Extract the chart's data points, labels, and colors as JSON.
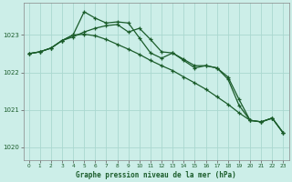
{
  "background_color": "#cceee8",
  "grid_color": "#aad8d0",
  "line_color": "#1a5c2a",
  "text_color": "#1a5c2a",
  "xlabel": "Graphe pression niveau de la mer (hPa)",
  "xlim": [
    -0.5,
    23.5
  ],
  "ylim": [
    1019.65,
    1023.85
  ],
  "yticks": [
    1020,
    1021,
    1022,
    1023
  ],
  "xticks": [
    0,
    1,
    2,
    3,
    4,
    5,
    6,
    7,
    8,
    9,
    10,
    11,
    12,
    13,
    14,
    15,
    16,
    17,
    18,
    19,
    20,
    21,
    22,
    23
  ],
  "series1": [
    1022.5,
    1022.55,
    1022.65,
    1022.85,
    1023.0,
    1023.62,
    1023.45,
    1023.32,
    1023.35,
    1023.32,
    1022.92,
    1022.52,
    1022.38,
    1022.52,
    1022.32,
    1022.12,
    1022.18,
    1022.12,
    1021.82,
    1021.12,
    1020.72,
    1020.68,
    1020.78,
    1020.38
  ],
  "series2": [
    1022.5,
    1022.55,
    1022.65,
    1022.85,
    1022.95,
    1023.08,
    1023.18,
    1023.25,
    1023.28,
    1023.08,
    1023.18,
    1022.88,
    1022.55,
    1022.52,
    1022.35,
    1022.18,
    1022.18,
    1022.12,
    1021.88,
    1021.28,
    1020.72,
    1020.68,
    1020.78,
    1020.38
  ],
  "series3": [
    1022.5,
    1022.55,
    1022.65,
    1022.85,
    1023.0,
    1023.02,
    1022.98,
    1022.88,
    1022.75,
    1022.62,
    1022.48,
    1022.32,
    1022.18,
    1022.05,
    1021.88,
    1021.72,
    1021.55,
    1021.35,
    1021.15,
    1020.92,
    1020.72,
    1020.68,
    1020.78,
    1020.38
  ]
}
